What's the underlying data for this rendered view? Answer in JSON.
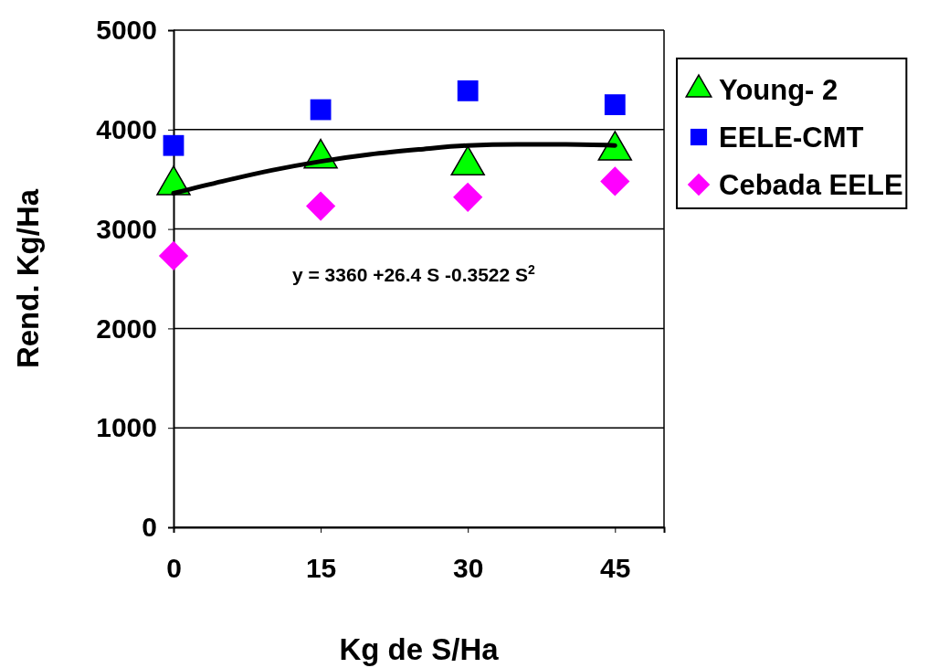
{
  "chart_data": {
    "type": "scatter",
    "xlabel": "Kg de S/Ha",
    "ylabel": "Rend. Kg/Ha",
    "xlim": [
      0,
      50
    ],
    "xticks": [
      0,
      15,
      30,
      45
    ],
    "ylim": [
      0,
      5000
    ],
    "yticks": [
      0,
      1000,
      2000,
      3000,
      4000,
      5000
    ],
    "grid": "y",
    "legend": "right",
    "annotations": [
      "y = 3360 +26.4 S -0.3522 S$^{2}$"
    ],
    "x": [
      0,
      15,
      30,
      45
    ],
    "series": [
      {
        "name": "Young- 2",
        "color": "#00ff00",
        "marker": "triangle",
        "values": [
          3440,
          3710,
          3640,
          3790
        ]
      },
      {
        "name": "EELE-CMT",
        "color": "#0000ff",
        "marker": "square",
        "values": [
          3840,
          4200,
          4390,
          4250
        ]
      },
      {
        "name": "Cebada EELE",
        "color": "#ff00ff",
        "marker": "diamond",
        "values": [
          2730,
          3230,
          3320,
          3480
        ]
      },
      {
        "type": "line",
        "color": "#000000",
        "marker": "none",
        "x": [
          0,
          5,
          10,
          15,
          20,
          25,
          30,
          35,
          40,
          45
        ],
        "values": [
          3360,
          3480,
          3590,
          3680,
          3750,
          3800,
          3840,
          3850,
          3850,
          3840
        ]
      }
    ]
  }
}
